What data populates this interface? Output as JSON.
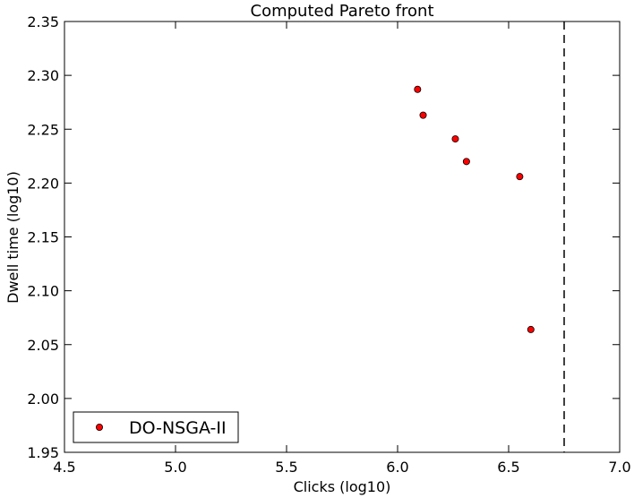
{
  "chart_data": {
    "type": "scatter",
    "title": "Computed Pareto front",
    "xlabel": "Clicks (log10)",
    "ylabel": "Dwell time (log10)",
    "xlim": [
      4.5,
      7.0
    ],
    "ylim": [
      1.95,
      2.35
    ],
    "xticks": [
      4.5,
      5.0,
      5.5,
      6.0,
      6.5,
      7.0
    ],
    "xtick_labels": [
      "4.5",
      "5.0",
      "5.5",
      "6.0",
      "6.5",
      "7.0"
    ],
    "yticks": [
      1.95,
      2.0,
      2.05,
      2.1,
      2.15,
      2.2,
      2.25,
      2.3,
      2.35
    ],
    "ytick_labels": [
      "1.95",
      "2.00",
      "2.05",
      "2.10",
      "2.15",
      "2.20",
      "2.25",
      "2.30",
      "2.35"
    ],
    "grid": false,
    "legend_position": "lower-left",
    "series": [
      {
        "name": "DO-NSGA-II",
        "color": "#ff0000",
        "marker": "circle",
        "x": [
          6.09,
          6.115,
          6.26,
          6.31,
          6.55,
          6.6
        ],
        "y": [
          2.287,
          2.263,
          2.241,
          2.22,
          2.206,
          2.064
        ]
      }
    ],
    "reference_lines": [
      {
        "orientation": "vertical",
        "x": 6.75,
        "style": "dashed",
        "color": "#000000"
      }
    ]
  }
}
